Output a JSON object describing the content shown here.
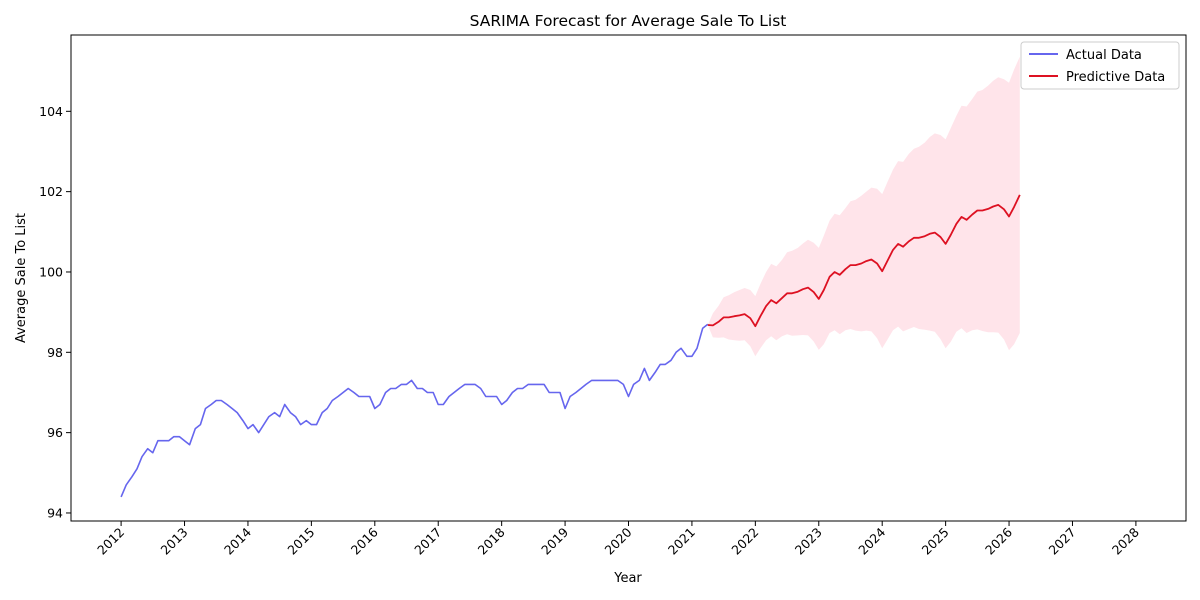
{
  "chart_data": {
    "type": "line",
    "title": "SARIMA Forecast for Average Sale To List",
    "xlabel": "Year",
    "ylabel": "Average Sale To List",
    "xlim": [
      2011.21,
      2028.79
    ],
    "ylim": [
      93.8,
      105.9
    ],
    "x_ticks": [
      "2012",
      "2013",
      "2014",
      "2015",
      "2016",
      "2017",
      "2018",
      "2019",
      "2020",
      "2021",
      "2022",
      "2023",
      "2024",
      "2025",
      "2026",
      "2027",
      "2028"
    ],
    "y_ticks": [
      94,
      96,
      98,
      100,
      102,
      104
    ],
    "legend": {
      "placement": "top-right",
      "entries": [
        "Actual Data",
        "Predictive Data"
      ]
    },
    "colors": {
      "actual": "#6666ee",
      "predictive": "#dd1122",
      "band": "#ffe4ea"
    },
    "series": [
      {
        "name": "Actual Data",
        "points": [
          [
            2012.0,
            94.4
          ],
          [
            2012.08,
            94.7
          ],
          [
            2012.17,
            94.9
          ],
          [
            2012.25,
            95.1
          ],
          [
            2012.33,
            95.4
          ],
          [
            2012.42,
            95.6
          ],
          [
            2012.5,
            95.5
          ],
          [
            2012.58,
            95.8
          ],
          [
            2012.67,
            95.8
          ],
          [
            2012.75,
            95.8
          ],
          [
            2012.83,
            95.9
          ],
          [
            2012.92,
            95.9
          ],
          [
            2013.0,
            95.8
          ],
          [
            2013.08,
            95.7
          ],
          [
            2013.17,
            96.1
          ],
          [
            2013.25,
            96.2
          ],
          [
            2013.33,
            96.6
          ],
          [
            2013.42,
            96.7
          ],
          [
            2013.5,
            96.8
          ],
          [
            2013.58,
            96.8
          ],
          [
            2013.67,
            96.7
          ],
          [
            2013.75,
            96.6
          ],
          [
            2013.83,
            96.5
          ],
          [
            2013.92,
            96.3
          ],
          [
            2014.0,
            96.1
          ],
          [
            2014.08,
            96.2
          ],
          [
            2014.17,
            96.0
          ],
          [
            2014.25,
            96.2
          ],
          [
            2014.33,
            96.4
          ],
          [
            2014.42,
            96.5
          ],
          [
            2014.5,
            96.4
          ],
          [
            2014.58,
            96.7
          ],
          [
            2014.67,
            96.5
          ],
          [
            2014.75,
            96.4
          ],
          [
            2014.83,
            96.2
          ],
          [
            2014.92,
            96.3
          ],
          [
            2015.0,
            96.2
          ],
          [
            2015.08,
            96.2
          ],
          [
            2015.17,
            96.5
          ],
          [
            2015.25,
            96.6
          ],
          [
            2015.33,
            96.8
          ],
          [
            2015.42,
            96.9
          ],
          [
            2015.5,
            97.0
          ],
          [
            2015.58,
            97.1
          ],
          [
            2015.67,
            97.0
          ],
          [
            2015.75,
            96.9
          ],
          [
            2015.83,
            96.9
          ],
          [
            2015.92,
            96.9
          ],
          [
            2016.0,
            96.6
          ],
          [
            2016.08,
            96.7
          ],
          [
            2016.17,
            97.0
          ],
          [
            2016.25,
            97.1
          ],
          [
            2016.33,
            97.1
          ],
          [
            2016.42,
            97.2
          ],
          [
            2016.5,
            97.2
          ],
          [
            2016.58,
            97.3
          ],
          [
            2016.67,
            97.1
          ],
          [
            2016.75,
            97.1
          ],
          [
            2016.83,
            97.0
          ],
          [
            2016.92,
            97.0
          ],
          [
            2017.0,
            96.7
          ],
          [
            2017.08,
            96.7
          ],
          [
            2017.17,
            96.9
          ],
          [
            2017.25,
            97.0
          ],
          [
            2017.33,
            97.1
          ],
          [
            2017.42,
            97.2
          ],
          [
            2017.5,
            97.2
          ],
          [
            2017.58,
            97.2
          ],
          [
            2017.67,
            97.1
          ],
          [
            2017.75,
            96.9
          ],
          [
            2017.83,
            96.9
          ],
          [
            2017.92,
            96.9
          ],
          [
            2018.0,
            96.7
          ],
          [
            2018.08,
            96.8
          ],
          [
            2018.17,
            97.0
          ],
          [
            2018.25,
            97.1
          ],
          [
            2018.33,
            97.1
          ],
          [
            2018.42,
            97.2
          ],
          [
            2018.5,
            97.2
          ],
          [
            2018.58,
            97.2
          ],
          [
            2018.67,
            97.2
          ],
          [
            2018.75,
            97.0
          ],
          [
            2018.83,
            97.0
          ],
          [
            2018.92,
            97.0
          ],
          [
            2019.0,
            96.6
          ],
          [
            2019.08,
            96.9
          ],
          [
            2019.17,
            97.0
          ],
          [
            2019.25,
            97.1
          ],
          [
            2019.33,
            97.2
          ],
          [
            2019.42,
            97.3
          ],
          [
            2019.5,
            97.3
          ],
          [
            2019.58,
            97.3
          ],
          [
            2019.67,
            97.3
          ],
          [
            2019.75,
            97.3
          ],
          [
            2019.83,
            97.3
          ],
          [
            2019.92,
            97.2
          ],
          [
            2020.0,
            96.9
          ],
          [
            2020.08,
            97.2
          ],
          [
            2020.17,
            97.3
          ],
          [
            2020.25,
            97.6
          ],
          [
            2020.33,
            97.3
          ],
          [
            2020.42,
            97.5
          ],
          [
            2020.5,
            97.7
          ],
          [
            2020.58,
            97.7
          ],
          [
            2020.67,
            97.8
          ],
          [
            2020.75,
            98.0
          ],
          [
            2020.83,
            98.1
          ],
          [
            2020.92,
            97.9
          ],
          [
            2021.0,
            97.9
          ],
          [
            2021.08,
            98.1
          ],
          [
            2021.17,
            98.6
          ],
          [
            2021.25,
            98.7
          ]
        ]
      },
      {
        "name": "Predictive Data",
        "points": [
          [
            2021.25,
            98.68
          ],
          [
            2021.33,
            98.67
          ],
          [
            2021.42,
            98.76
          ],
          [
            2021.5,
            98.87
          ],
          [
            2021.58,
            98.87
          ],
          [
            2021.67,
            98.9
          ],
          [
            2021.75,
            98.92
          ],
          [
            2021.83,
            98.95
          ],
          [
            2021.92,
            98.85
          ],
          [
            2022.0,
            98.65
          ],
          [
            2022.08,
            98.9
          ],
          [
            2022.17,
            99.15
          ],
          [
            2022.25,
            99.3
          ],
          [
            2022.33,
            99.22
          ],
          [
            2022.42,
            99.35
          ],
          [
            2022.5,
            99.47
          ],
          [
            2022.58,
            99.47
          ],
          [
            2022.67,
            99.51
          ],
          [
            2022.75,
            99.57
          ],
          [
            2022.83,
            99.61
          ],
          [
            2022.92,
            99.5
          ],
          [
            2023.0,
            99.33
          ],
          [
            2023.08,
            99.55
          ],
          [
            2023.17,
            99.88
          ],
          [
            2023.25,
            100.0
          ],
          [
            2023.33,
            99.93
          ],
          [
            2023.42,
            100.07
          ],
          [
            2023.5,
            100.17
          ],
          [
            2023.58,
            100.17
          ],
          [
            2023.67,
            100.21
          ],
          [
            2023.75,
            100.27
          ],
          [
            2023.83,
            100.31
          ],
          [
            2023.92,
            100.21
          ],
          [
            2024.0,
            100.02
          ],
          [
            2024.08,
            100.27
          ],
          [
            2024.17,
            100.55
          ],
          [
            2024.25,
            100.7
          ],
          [
            2024.33,
            100.63
          ],
          [
            2024.42,
            100.76
          ],
          [
            2024.5,
            100.85
          ],
          [
            2024.58,
            100.85
          ],
          [
            2024.67,
            100.89
          ],
          [
            2024.75,
            100.95
          ],
          [
            2024.83,
            100.98
          ],
          [
            2024.92,
            100.87
          ],
          [
            2025.0,
            100.7
          ],
          [
            2025.08,
            100.92
          ],
          [
            2025.17,
            101.2
          ],
          [
            2025.25,
            101.37
          ],
          [
            2025.33,
            101.3
          ],
          [
            2025.42,
            101.43
          ],
          [
            2025.5,
            101.53
          ],
          [
            2025.58,
            101.53
          ],
          [
            2025.67,
            101.57
          ],
          [
            2025.75,
            101.63
          ],
          [
            2025.83,
            101.67
          ],
          [
            2025.92,
            101.56
          ],
          [
            2026.0,
            101.38
          ],
          [
            2026.08,
            101.62
          ],
          [
            2026.17,
            101.92
          ]
        ]
      }
    ],
    "confidence_band": {
      "points": [
        [
          2021.25,
          98.68,
          98.68
        ],
        [
          2021.33,
          98.37,
          98.97
        ],
        [
          2021.42,
          98.36,
          99.16
        ],
        [
          2021.5,
          98.37,
          99.37
        ],
        [
          2021.58,
          98.32,
          99.42
        ],
        [
          2021.67,
          98.3,
          99.5
        ],
        [
          2021.75,
          98.29,
          99.55
        ],
        [
          2021.83,
          98.3,
          99.6
        ],
        [
          2021.92,
          98.15,
          99.55
        ],
        [
          2022.0,
          97.9,
          99.4
        ],
        [
          2022.08,
          98.1,
          99.7
        ],
        [
          2022.17,
          98.3,
          100.0
        ],
        [
          2022.25,
          98.4,
          100.2
        ],
        [
          2022.33,
          98.3,
          100.14
        ],
        [
          2022.42,
          98.4,
          100.3
        ],
        [
          2022.5,
          98.45,
          100.49
        ],
        [
          2022.58,
          98.41,
          100.53
        ],
        [
          2022.67,
          98.42,
          100.6
        ],
        [
          2022.75,
          98.43,
          100.71
        ],
        [
          2022.83,
          98.42,
          100.8
        ],
        [
          2022.92,
          98.27,
          100.73
        ],
        [
          2023.0,
          98.06,
          100.6
        ],
        [
          2023.08,
          98.2,
          100.9
        ],
        [
          2023.17,
          98.48,
          101.28
        ],
        [
          2023.25,
          98.55,
          101.45
        ],
        [
          2023.33,
          98.45,
          101.41
        ],
        [
          2023.42,
          98.55,
          101.59
        ],
        [
          2023.5,
          98.58,
          101.76
        ],
        [
          2023.58,
          98.54,
          101.8
        ],
        [
          2023.67,
          98.52,
          101.9
        ],
        [
          2023.75,
          98.54,
          102.0
        ],
        [
          2023.83,
          98.52,
          102.1
        ],
        [
          2023.92,
          98.35,
          102.07
        ],
        [
          2024.0,
          98.1,
          101.94
        ],
        [
          2024.08,
          98.31,
          102.23
        ],
        [
          2024.17,
          98.55,
          102.55
        ],
        [
          2024.25,
          98.64,
          102.76
        ],
        [
          2024.33,
          98.52,
          102.74
        ],
        [
          2024.42,
          98.58,
          102.94
        ],
        [
          2024.5,
          98.63,
          103.07
        ],
        [
          2024.58,
          98.58,
          103.12
        ],
        [
          2024.67,
          98.56,
          103.22
        ],
        [
          2024.75,
          98.54,
          103.36
        ],
        [
          2024.83,
          98.51,
          103.45
        ],
        [
          2024.92,
          98.33,
          103.41
        ],
        [
          2025.0,
          98.1,
          103.3
        ],
        [
          2025.08,
          98.26,
          103.58
        ],
        [
          2025.17,
          98.51,
          103.89
        ],
        [
          2025.25,
          98.6,
          104.14
        ],
        [
          2025.33,
          98.48,
          104.12
        ],
        [
          2025.42,
          98.55,
          104.31
        ],
        [
          2025.5,
          98.57,
          104.49
        ],
        [
          2025.58,
          98.53,
          104.53
        ],
        [
          2025.67,
          98.5,
          104.64
        ],
        [
          2025.75,
          98.5,
          104.76
        ],
        [
          2025.83,
          98.49,
          104.85
        ],
        [
          2025.92,
          98.32,
          104.8
        ],
        [
          2026.0,
          98.05,
          104.71
        ],
        [
          2026.08,
          98.2,
          105.04
        ],
        [
          2026.17,
          98.48,
          105.36
        ]
      ]
    }
  }
}
